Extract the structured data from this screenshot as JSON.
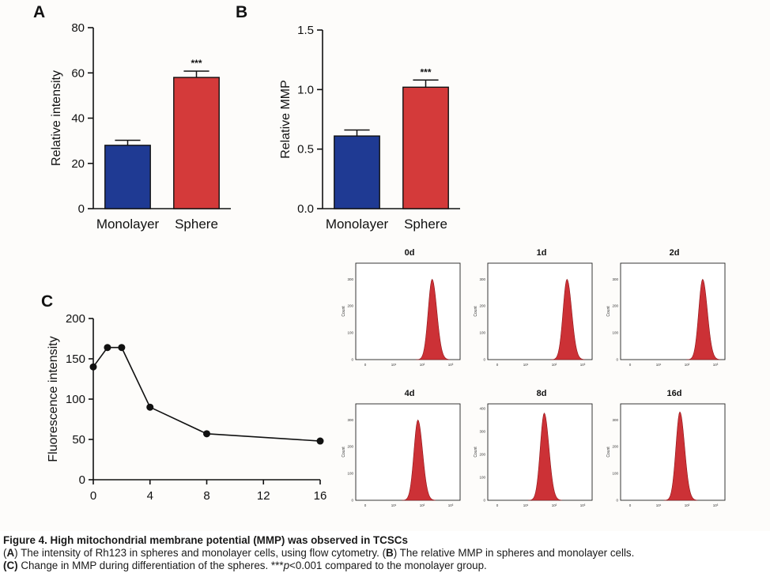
{
  "chart_data": [
    {
      "panel": "A",
      "type": "bar",
      "categories": [
        "Monolayer",
        "Sphere"
      ],
      "values": [
        28,
        58
      ],
      "errors": [
        2.2,
        2.8
      ],
      "colors": [
        "#1f3a93",
        "#d43a3a"
      ],
      "ylabel": "Relative intensity",
      "ylim": [
        0,
        80
      ],
      "yticks": [
        "0",
        "20",
        "40",
        "60",
        "80"
      ],
      "significance": "***"
    },
    {
      "panel": "B",
      "type": "bar",
      "categories": [
        "Monolayer",
        "Sphere"
      ],
      "values": [
        0.61,
        1.02
      ],
      "errors": [
        0.05,
        0.06
      ],
      "colors": [
        "#1f3a93",
        "#d43a3a"
      ],
      "ylabel": "Relative MMP",
      "ylim": [
        0,
        1.5
      ],
      "yticks": [
        "0.0",
        "0.5",
        "1.0",
        "1.5"
      ],
      "significance": "***"
    },
    {
      "panel": "C",
      "type": "line",
      "x": [
        0,
        1,
        2,
        4,
        8,
        16
      ],
      "y": [
        140,
        164,
        164,
        90,
        57,
        48
      ],
      "ylabel": "Fluorescence intensity",
      "xlim": [
        0,
        16
      ],
      "ylim": [
        0,
        200
      ],
      "xticks": [
        "0",
        "4",
        "8",
        "12",
        "16"
      ],
      "yticks": [
        "0",
        "50",
        "100",
        "150",
        "200"
      ]
    },
    {
      "panel": "C-histograms",
      "type": "area",
      "histograms": [
        {
          "title": "0d",
          "yticks": [
            "0",
            "100",
            "200",
            "300"
          ],
          "ymax": 360,
          "peak_log": 2.35,
          "peak": 300
        },
        {
          "title": "1d",
          "yticks": [
            "0",
            "100",
            "200",
            "300"
          ],
          "ymax": 360,
          "peak_log": 2.45,
          "peak": 300
        },
        {
          "title": "2d",
          "yticks": [
            "0",
            "100",
            "200",
            "300"
          ],
          "ymax": 360,
          "peak_log": 2.55,
          "peak": 300
        },
        {
          "title": "4d",
          "yticks": [
            "0",
            "100",
            "200",
            "300"
          ],
          "ymax": 360,
          "peak_log": 1.85,
          "peak": 300
        },
        {
          "title": "8d",
          "yticks": [
            "0",
            "100",
            "200",
            "300",
            "400"
          ],
          "ymax": 420,
          "peak_log": 1.65,
          "peak": 380
        },
        {
          "title": "16d",
          "yticks": [
            "0",
            "100",
            "200",
            "300"
          ],
          "ymax": 360,
          "peak_log": 1.75,
          "peak": 330
        }
      ],
      "ylabel": "Count",
      "xticks": [
        "0",
        "10¹",
        "10²",
        "10³"
      ],
      "fill_color": "#c9262b"
    }
  ],
  "panels": {
    "a": "A",
    "b": "B",
    "c": "C"
  },
  "caption": {
    "title": "Figure 4. High mitochondrial membrane potential (MMP) was observed in TCSCs",
    "line1_a": "A",
    "line1_text1": ") The intensity of Rh123 in spheres and monolayer cells, using flow cytometry. (",
    "line1_b": "B",
    "line1_text2": ") The relative MMP in spheres and monolayer cells.",
    "line2_c": "(C)",
    "line2_text1": " Change in MMP during differentiation of the spheres. ***",
    "line2_p": "p",
    "line2_text2": "<0.001 compared to the monolayer group."
  }
}
